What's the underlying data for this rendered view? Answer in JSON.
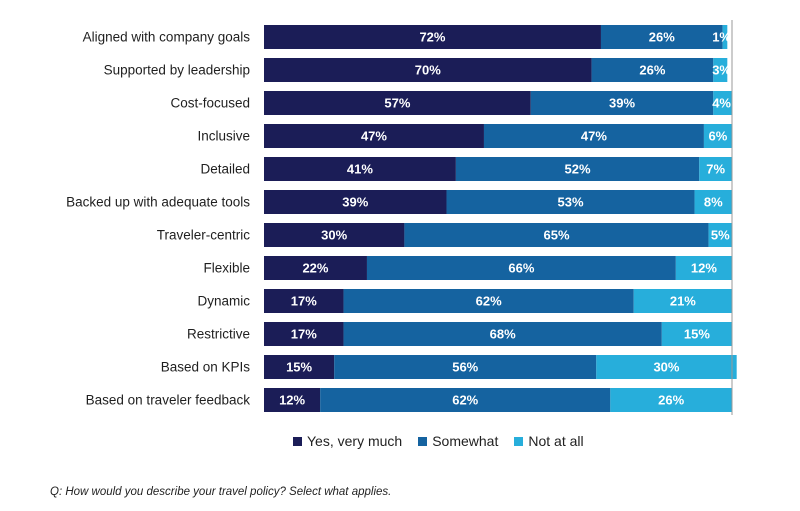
{
  "chart_data": {
    "type": "bar",
    "orientation": "horizontal",
    "stacked": true,
    "categories": [
      "Aligned with company goals",
      "Supported by leadership",
      "Cost-focused",
      "Inclusive",
      "Detailed",
      "Backed up with adequate tools",
      "Traveler-centric",
      "Flexible",
      "Dynamic",
      "Restrictive",
      "Based on KPIs",
      "Based on traveler feedback"
    ],
    "series": [
      {
        "name": "Yes, very much",
        "color": "#1b1d57",
        "values": [
          72,
          70,
          57,
          47,
          41,
          39,
          30,
          22,
          17,
          17,
          15,
          12
        ]
      },
      {
        "name": "Somewhat",
        "color": "#1563a0",
        "values": [
          26,
          26,
          39,
          47,
          52,
          53,
          65,
          66,
          62,
          68,
          56,
          62
        ]
      },
      {
        "name": "Not at all",
        "color": "#27aedb",
        "values": [
          1,
          3,
          4,
          6,
          7,
          8,
          5,
          12,
          21,
          15,
          30,
          26
        ]
      }
    ],
    "value_suffix": "%",
    "xlim": [
      0,
      100
    ],
    "legend_position": "bottom",
    "grid": false
  },
  "legend": {
    "items": [
      "Yes, very much",
      "Somewhat",
      "Not at all"
    ]
  },
  "footnote": "Q: How would you describe your travel policy? Select what applies."
}
